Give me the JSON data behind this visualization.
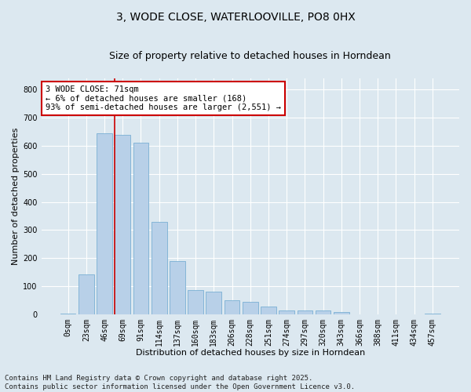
{
  "title_line1": "3, WODE CLOSE, WATERLOOVILLE, PO8 0HX",
  "title_line2": "Size of property relative to detached houses in Horndean",
  "xlabel": "Distribution of detached houses by size in Horndean",
  "ylabel": "Number of detached properties",
  "bar_color": "#b8d0e8",
  "bar_edge_color": "#7aafd4",
  "background_color": "#dce8f0",
  "grid_color": "#ffffff",
  "annotation_line_color": "#cc0000",
  "annotation_box_color": "#cc0000",
  "annotation_text": "3 WODE CLOSE: 71sqm\n← 6% of detached houses are smaller (168)\n93% of semi-detached houses are larger (2,551) →",
  "property_bin_index": 3,
  "categories": [
    "0sqm",
    "23sqm",
    "46sqm",
    "69sqm",
    "91sqm",
    "114sqm",
    "137sqm",
    "160sqm",
    "183sqm",
    "206sqm",
    "228sqm",
    "251sqm",
    "274sqm",
    "297sqm",
    "320sqm",
    "343sqm",
    "366sqm",
    "388sqm",
    "411sqm",
    "434sqm",
    "457sqm"
  ],
  "values": [
    2,
    142,
    645,
    640,
    610,
    330,
    190,
    85,
    80,
    50,
    45,
    28,
    12,
    12,
    12,
    7,
    0,
    0,
    0,
    0,
    2
  ],
  "ylim": [
    0,
    840
  ],
  "yticks": [
    0,
    100,
    200,
    300,
    400,
    500,
    600,
    700,
    800
  ],
  "footnote": "Contains HM Land Registry data © Crown copyright and database right 2025.\nContains public sector information licensed under the Open Government Licence v3.0.",
  "fig_width": 6.0,
  "fig_height": 5.0,
  "dpi": 100,
  "title_fontsize": 10,
  "subtitle_fontsize": 9,
  "axis_label_fontsize": 8,
  "tick_fontsize": 7,
  "annotation_fontsize": 7.5,
  "footnote_fontsize": 6.5
}
